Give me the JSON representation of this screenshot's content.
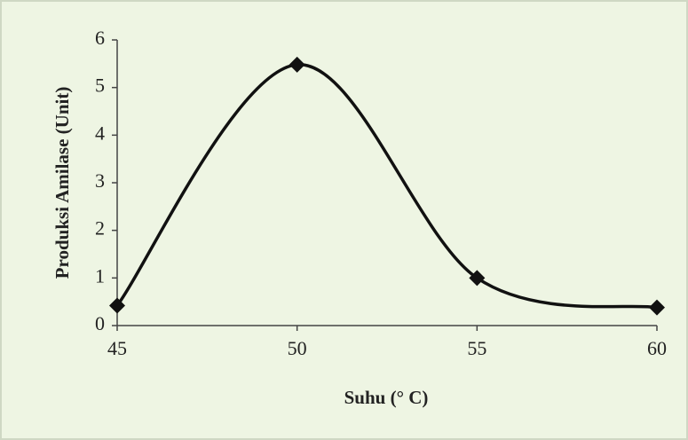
{
  "chart_data": {
    "type": "line",
    "x": [
      45,
      50,
      55,
      60
    ],
    "series": [
      {
        "color": "#111111",
        "values": [
          0.42,
          5.48,
          1.0,
          0.38
        ]
      }
    ],
    "xlabel": "Suhu (° C)",
    "ylabel": "Produksi Amilase (Unit)",
    "xlim": [
      45,
      60
    ],
    "xticks": [
      45,
      50,
      55,
      60
    ],
    "ylim": [
      0,
      6
    ],
    "yticks": [
      0,
      1,
      2,
      3,
      4,
      5,
      6
    ],
    "smooth": true,
    "marker": "diamond",
    "grid": false
  }
}
